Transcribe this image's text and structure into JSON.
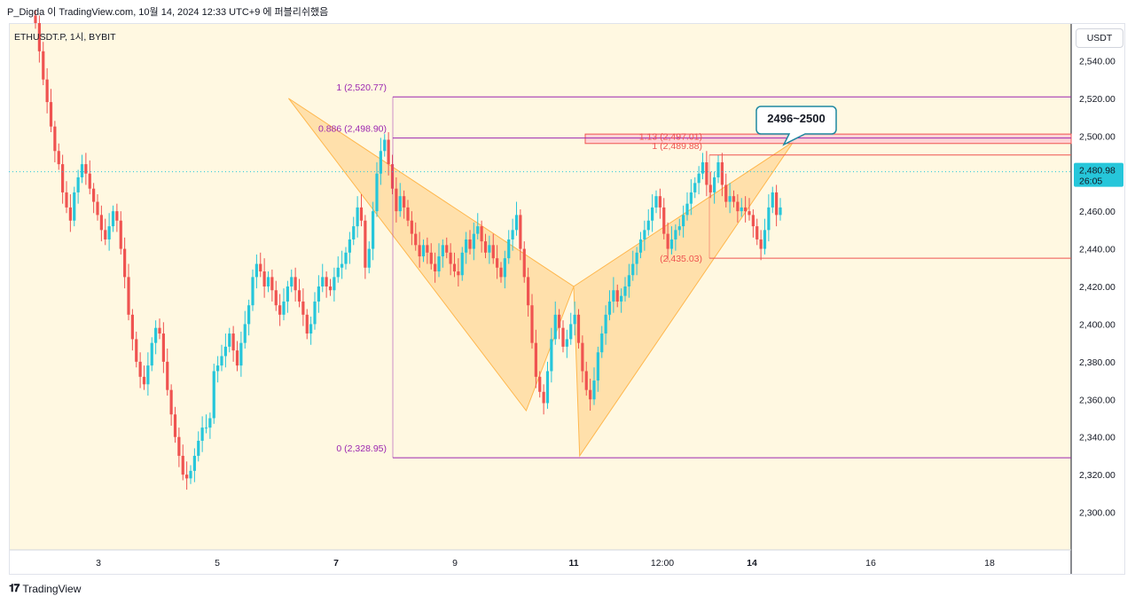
{
  "header": {
    "publish_line": "P_Digda 이 TradingView.com, 10월 14, 2024 12:33 UTC+9 에 퍼블리쉬했음",
    "symbol": "ETHUSDT.P, 1시, BYBIT",
    "currency": "USDT"
  },
  "footer": {
    "brand": "TradingView",
    "logo": "tradingview-logo"
  },
  "colors": {
    "background": "#fff8e1",
    "up": "#26c6da",
    "down": "#ef5350",
    "fib": "#9c27b0",
    "pattern": "#ffcc80",
    "zone": "#ffcdd2",
    "callout": "#1e88a0",
    "price_badge": "#26c6da"
  },
  "price_badge": {
    "price": "2,480.98",
    "countdown": "26:05"
  },
  "callout": {
    "text": "2496~2500"
  },
  "chart_data": {
    "type": "candlestick",
    "y_axis": {
      "ylim": [
        2280,
        2560
      ],
      "ticks": [
        2300,
        2320,
        2340,
        2360,
        2380,
        2400,
        2420,
        2440,
        2460,
        2480,
        2500,
        2520,
        2540
      ],
      "tick_labels": [
        "2,300.00",
        "2,320.00",
        "2,340.00",
        "2,360.00",
        "2,380.00",
        "2,400.00",
        "2,420.00",
        "2,440.00",
        "2,460.00",
        "2,480.00",
        "2,500.00",
        "2,520.00",
        "2,540.00"
      ]
    },
    "x_axis": {
      "tick_labels": [
        "3",
        "5",
        "7",
        "9",
        "11",
        "12:00",
        "14",
        "16",
        "18"
      ],
      "bold": [
        "7",
        "11",
        "14"
      ]
    },
    "last_price": 2480.98,
    "fib_levels": [
      {
        "label": "1 (2,520.77)",
        "price": 2520.77
      },
      {
        "label": "0.886 (2,498.90)",
        "price": 2498.9
      },
      {
        "label": "0 (2,328.95)",
        "price": 2328.95
      }
    ],
    "extension_levels": [
      {
        "label": "1.13 (2,497.01)",
        "price": 2497.01
      },
      {
        "label": "1 (2,489.88)",
        "price": 2489.88
      },
      {
        "label": "(2,435.03)",
        "price": 2435.03
      }
    ],
    "target_zone": {
      "low": 2496,
      "high": 2501
    },
    "pattern_points": [
      {
        "t": 6.2,
        "price": 2520
      },
      {
        "t": 10.2,
        "price": 2354
      },
      {
        "t": 11.0,
        "price": 2420
      },
      {
        "t": 11.1,
        "price": 2330
      },
      {
        "t": 14.7,
        "price": 2497
      }
    ],
    "candles_close": [
      2560,
      2545,
      2530,
      2518,
      2505,
      2492,
      2485,
      2470,
      2462,
      2455,
      2470,
      2478,
      2485,
      2480,
      2472,
      2465,
      2458,
      2450,
      2445,
      2452,
      2460,
      2455,
      2440,
      2425,
      2405,
      2392,
      2380,
      2372,
      2368,
      2378,
      2390,
      2398,
      2395,
      2380,
      2365,
      2352,
      2340,
      2330,
      2320,
      2318,
      2322,
      2330,
      2338,
      2345,
      2345,
      2350,
      2375,
      2378,
      2383,
      2388,
      2395,
      2386,
      2378,
      2390,
      2400,
      2410,
      2425,
      2432,
      2428,
      2420,
      2425,
      2418,
      2410,
      2405,
      2412,
      2420,
      2425,
      2418,
      2412,
      2405,
      2395,
      2400,
      2412,
      2420,
      2425,
      2420,
      2418,
      2425,
      2430,
      2432,
      2438,
      2445,
      2452,
      2462,
      2455,
      2430,
      2440,
      2460,
      2480,
      2492,
      2498,
      2485,
      2472,
      2460,
      2468,
      2462,
      2455,
      2448,
      2442,
      2436,
      2442,
      2438,
      2432,
      2428,
      2436,
      2442,
      2438,
      2432,
      2428,
      2426,
      2438,
      2445,
      2440,
      2448,
      2452,
      2444,
      2438,
      2442,
      2435,
      2430,
      2425,
      2435,
      2445,
      2450,
      2458,
      2440,
      2425,
      2410,
      2390,
      2372,
      2364,
      2358,
      2375,
      2392,
      2405,
      2398,
      2388,
      2392,
      2400,
      2405,
      2390,
      2375,
      2365,
      2360,
      2370,
      2385,
      2395,
      2405,
      2412,
      2418,
      2412,
      2415,
      2420,
      2426,
      2432,
      2438,
      2445,
      2450,
      2455,
      2462,
      2468,
      2462,
      2448,
      2440,
      2445,
      2450,
      2452,
      2458,
      2464,
      2470,
      2475,
      2480,
      2486,
      2474,
      2470,
      2478,
      2486,
      2474,
      2465,
      2468,
      2465,
      2460,
      2462,
      2460,
      2458,
      2452,
      2445,
      2440,
      2450,
      2462,
      2470,
      2458,
      2462
    ]
  }
}
